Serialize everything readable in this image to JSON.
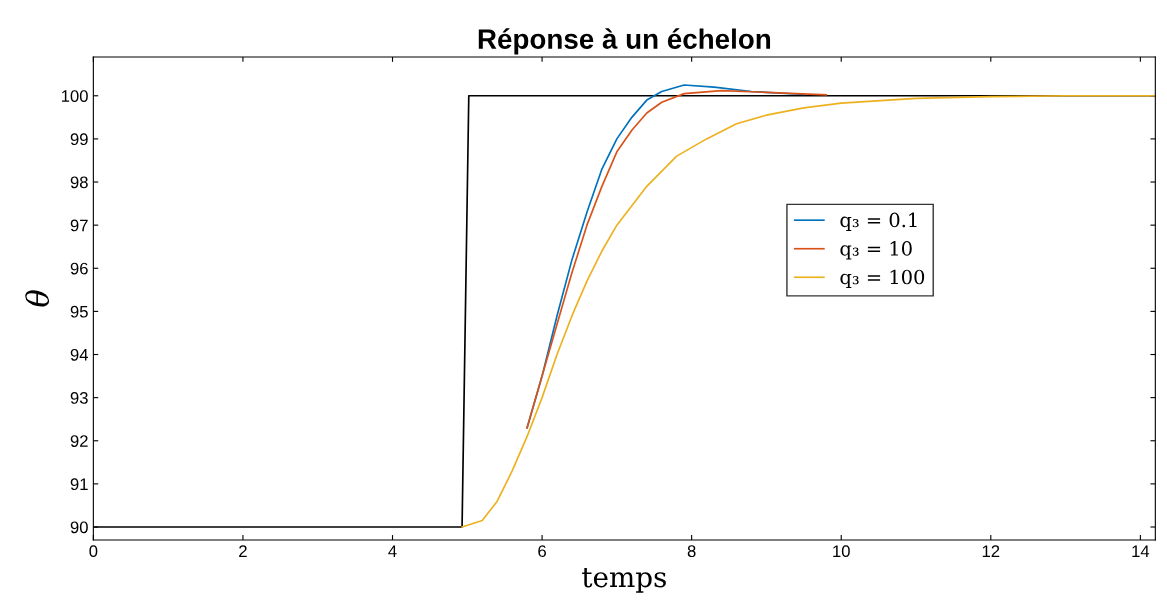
{
  "chart_data": {
    "type": "line",
    "title": "Réponse à un échelon",
    "xlabel": "temps",
    "ylabel": "θ",
    "xlim": [
      0,
      14.2
    ],
    "xticks": [
      0,
      2,
      4,
      6,
      8,
      10,
      12,
      14
    ],
    "ylim": [
      89.7,
      100.9
    ],
    "yticks": [
      90,
      91,
      92,
      93,
      94,
      95,
      96,
      97,
      98,
      99,
      100
    ],
    "grid": false,
    "legend": "right",
    "marker": "none",
    "line_style": "solid",
    "series": [
      {
        "color": "#000000",
        "x": [
          0,
          4.93,
          5.02,
          14.2
        ],
        "values": [
          90,
          90,
          100,
          100
        ]
      },
      {
        "name": "q₃ = 0.1",
        "color": "#0072bd",
        "x": [
          5.8,
          6.0,
          6.2,
          6.4,
          6.6,
          6.8,
          7.0,
          7.2,
          7.4,
          7.6,
          7.9,
          8.3,
          8.8,
          9.5
        ],
        "values": [
          92.3,
          93.5,
          94.9,
          96.2,
          97.3,
          98.3,
          99.0,
          99.5,
          99.9,
          100.1,
          100.25,
          100.2,
          100.1,
          100.03
        ]
      },
      {
        "name": "q₃ = 10",
        "color": "#d95319",
        "x": [
          5.8,
          6.0,
          6.2,
          6.4,
          6.6,
          6.8,
          7.0,
          7.2,
          7.4,
          7.6,
          7.9,
          8.4,
          9.0,
          9.8
        ],
        "values": [
          92.3,
          93.5,
          94.7,
          95.9,
          97.0,
          97.9,
          98.7,
          99.2,
          99.6,
          99.85,
          100.05,
          100.12,
          100.08,
          100.02
        ]
      },
      {
        "name": "q₃ = 100",
        "color": "#edb120",
        "x": [
          4.93,
          5.2,
          5.4,
          5.6,
          5.8,
          6.0,
          6.2,
          6.4,
          6.6,
          6.8,
          7.0,
          7.4,
          7.8,
          8.2,
          8.6,
          9.0,
          9.5,
          10,
          11,
          12,
          13,
          14.2
        ],
        "values": [
          90,
          90.15,
          90.6,
          91.3,
          92.1,
          93.0,
          94.0,
          94.9,
          95.7,
          96.4,
          97.0,
          97.9,
          98.6,
          99.0,
          99.35,
          99.55,
          99.72,
          99.83,
          99.94,
          99.98,
          100,
          100
        ]
      }
    ]
  }
}
